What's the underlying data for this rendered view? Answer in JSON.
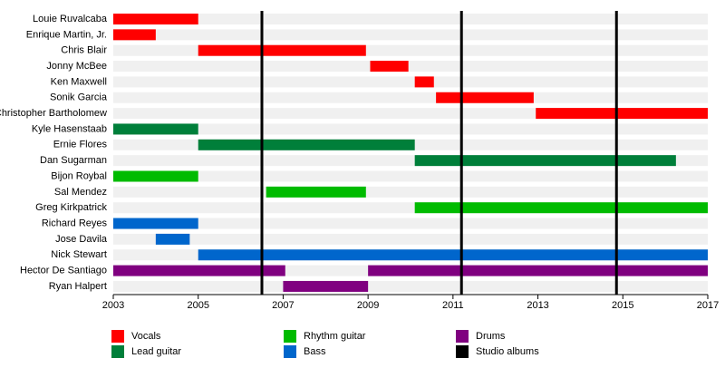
{
  "chart_data": {
    "type": "timeline",
    "categories": [
      "Louie Ruvalcaba",
      "Enrique Martin, Jr.",
      "Chris Blair",
      "Jonny McBee",
      "Ken Maxwell",
      "Sonik Garcia",
      "Christopher Bartholomew",
      "Kyle Hasenstaab",
      "Ernie Flores",
      "Dan Sugarman",
      "Bijon Roybal",
      "Sal Mendez",
      "Greg Kirkpatrick",
      "Richard Reyes",
      "Jose Davila",
      "Nick Stewart",
      "Hector De Santiago",
      "Ryan Halpert"
    ],
    "series": [
      {
        "name": "Vocals",
        "color": "#ff0000",
        "values": [
          [
            [
              2003,
              2005
            ]
          ],
          [
            [
              2003,
              2004
            ]
          ],
          [
            [
              2005,
              2008.95
            ]
          ],
          [
            [
              2009.05,
              2009.95
            ]
          ],
          [
            [
              2010.1,
              2010.55
            ]
          ],
          [
            [
              2010.6,
              2012.9
            ]
          ],
          [
            [
              2012.95,
              2017
            ]
          ],
          null,
          null,
          null,
          null,
          null,
          null,
          null,
          null,
          null,
          null,
          null
        ]
      },
      {
        "name": "Lead guitar",
        "color": "#007f3a",
        "values": [
          null,
          null,
          null,
          null,
          null,
          null,
          null,
          [
            [
              2003,
              2005
            ]
          ],
          [
            [
              2005,
              2010.1
            ]
          ],
          [
            [
              2010.1,
              2016.25
            ]
          ],
          null,
          null,
          null,
          null,
          null,
          null,
          null,
          null
        ]
      },
      {
        "name": "Rhythm guitar",
        "color": "#00bb00",
        "values": [
          null,
          null,
          null,
          null,
          null,
          null,
          null,
          null,
          null,
          null,
          [
            [
              2003,
              2005
            ]
          ],
          [
            [
              2006.6,
              2008.95
            ]
          ],
          [
            [
              2010.1,
              2017
            ]
          ],
          null,
          null,
          null,
          null,
          null
        ]
      },
      {
        "name": "Bass",
        "color": "#0066cc",
        "values": [
          null,
          null,
          null,
          null,
          null,
          null,
          null,
          null,
          null,
          null,
          null,
          null,
          null,
          [
            [
              2003,
              2005
            ]
          ],
          [
            [
              2004,
              2004.8
            ]
          ],
          [
            [
              2005,
              2017
            ]
          ],
          null,
          null
        ]
      },
      {
        "name": "Drums",
        "color": "#800080",
        "values": [
          null,
          null,
          null,
          null,
          null,
          null,
          null,
          null,
          null,
          null,
          null,
          null,
          null,
          null,
          null,
          null,
          [
            [
              2003,
              2007.05
            ],
            [
              2009,
              2017
            ]
          ],
          [
            [
              2007,
              2009
            ]
          ]
        ]
      }
    ],
    "markers": {
      "name": "Studio albums",
      "color": "#000000",
      "values": [
        2006.5,
        2011.2,
        2014.85
      ]
    },
    "xlim": [
      2003,
      2017
    ],
    "xticks": [
      2003,
      2005,
      2007,
      2009,
      2011,
      2013,
      2015,
      2017
    ]
  }
}
